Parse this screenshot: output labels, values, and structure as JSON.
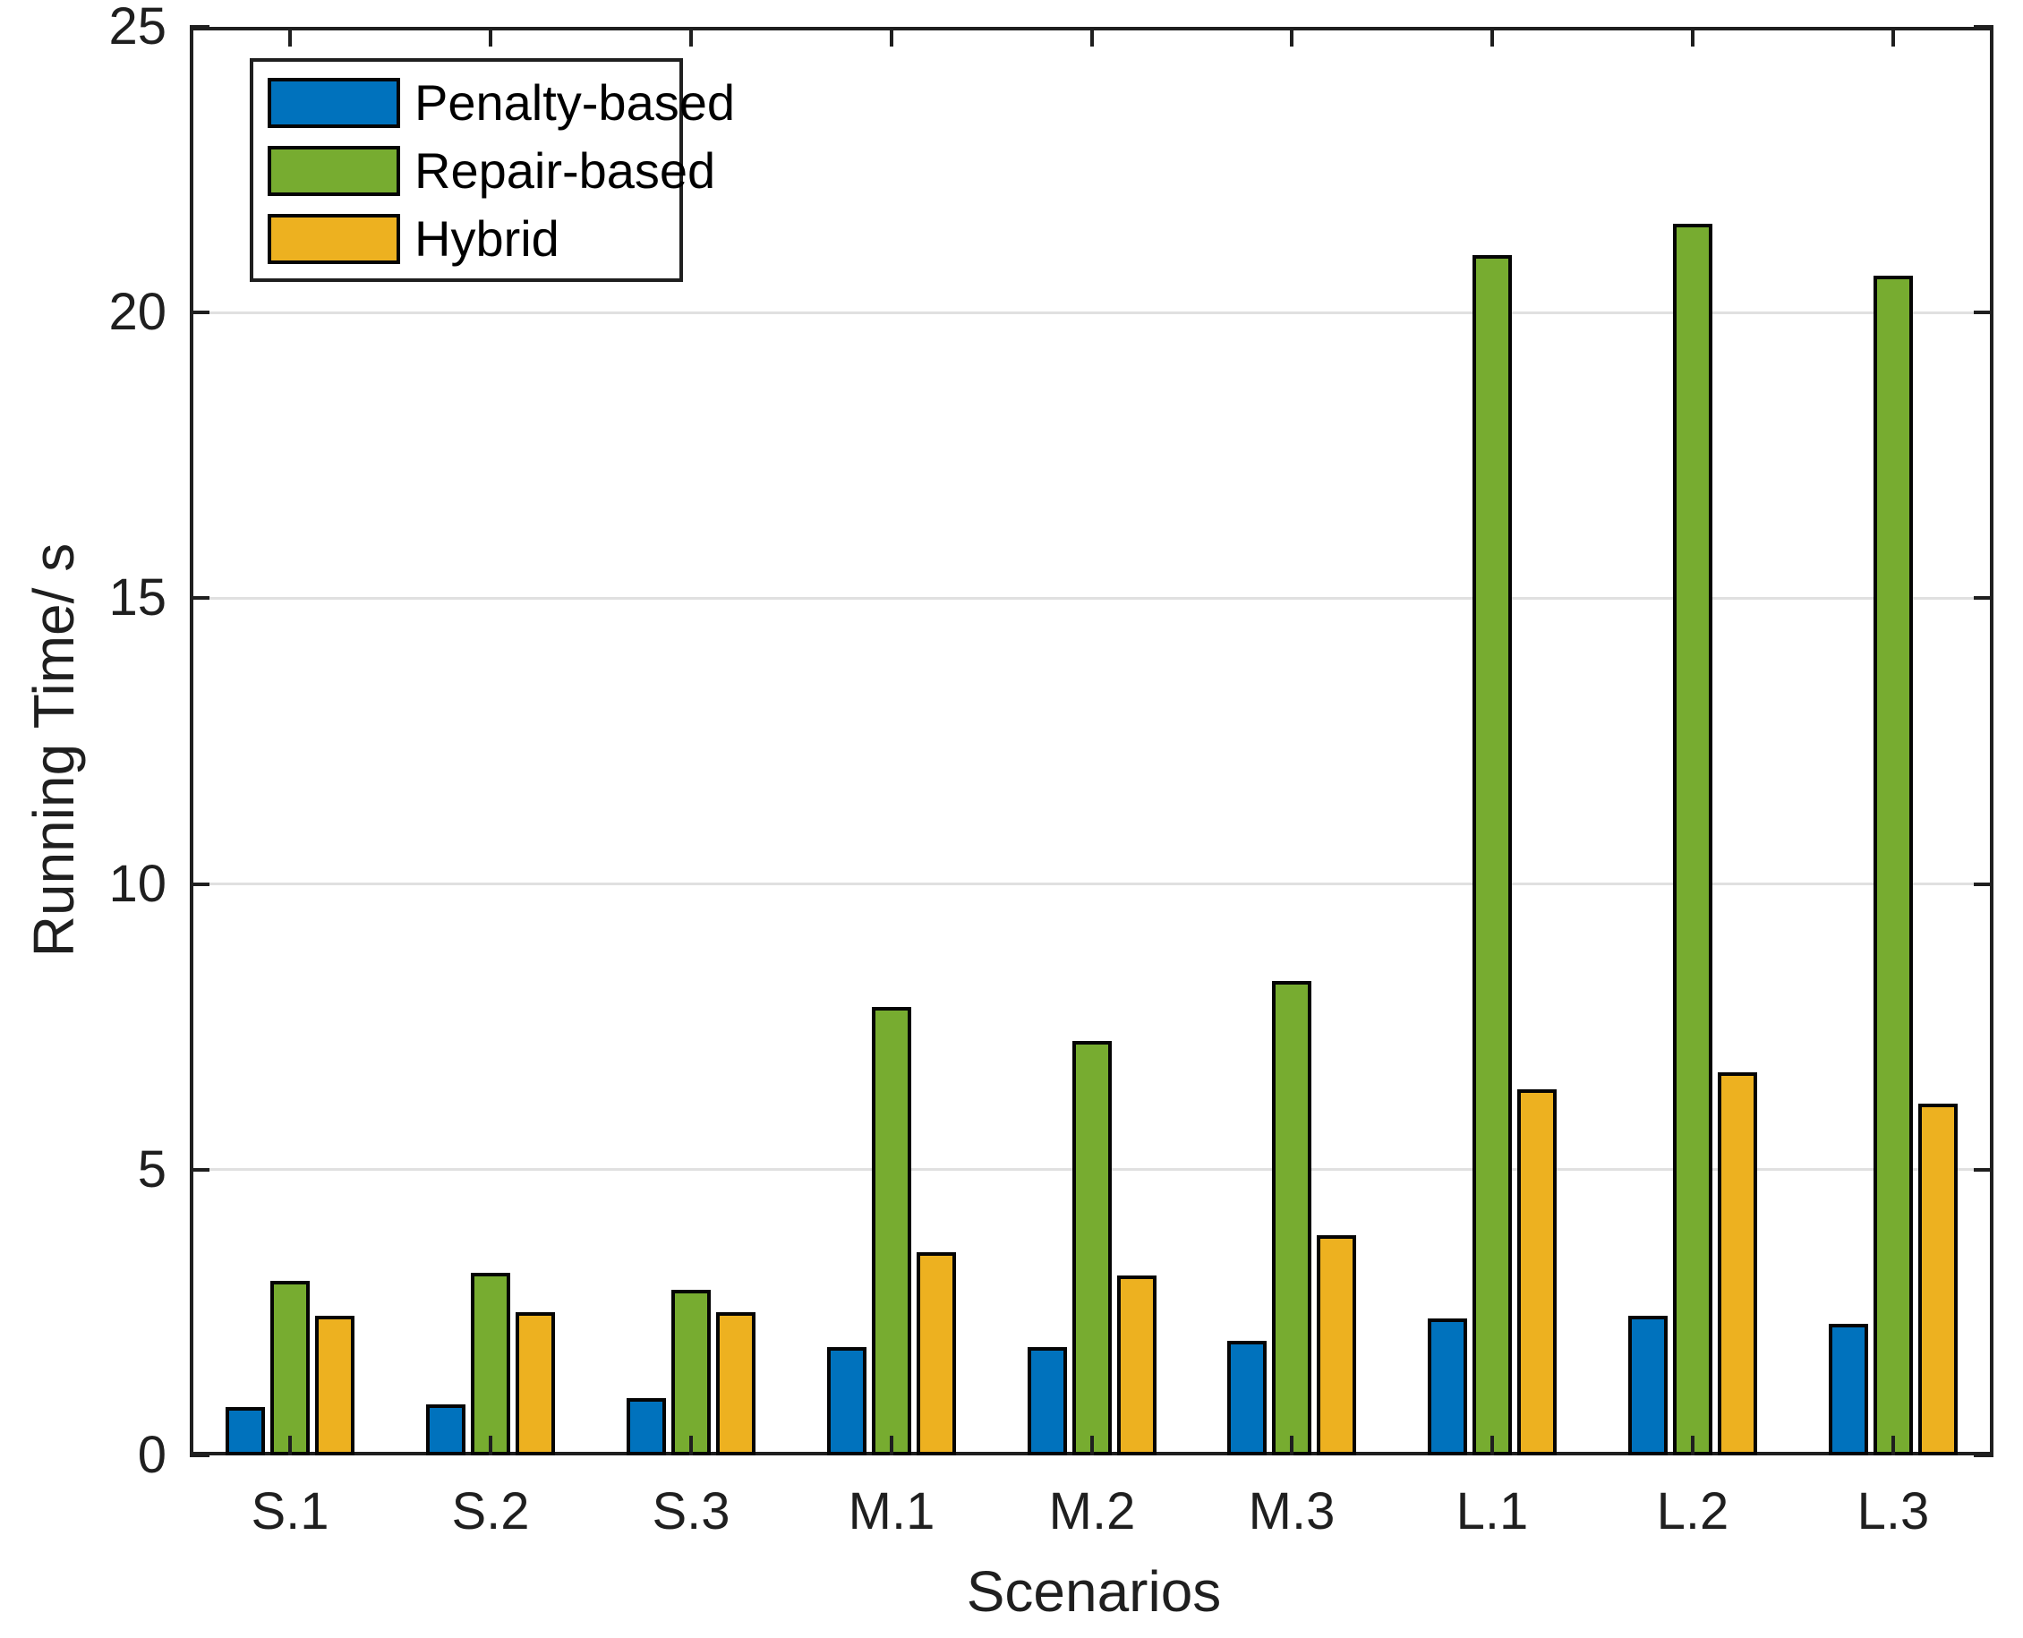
{
  "figure": {
    "background": "#ffffff",
    "axis_color": "#1f1f1f",
    "grid_color": "#e0e0e0",
    "bar_edge_color": "#050505"
  },
  "chart_data": {
    "type": "bar",
    "title": "",
    "xlabel": "Scenarios",
    "ylabel": "Running Time/ s",
    "categories": [
      "S.1",
      "S.2",
      "S.3",
      "M.1",
      "M.2",
      "M.3",
      "L.1",
      "L.2",
      "L.3"
    ],
    "series": [
      {
        "name": "Penalty-based",
        "color": "#0072BD",
        "values": [
          0.85,
          0.9,
          1.0,
          1.9,
          1.9,
          2.0,
          2.4,
          2.45,
          2.3
        ]
      },
      {
        "name": "Repair-based",
        "color": "#77AC30",
        "values": [
          3.05,
          3.2,
          2.9,
          7.85,
          7.25,
          8.3,
          21.0,
          21.55,
          20.65
        ]
      },
      {
        "name": "Hybrid",
        "color": "#EDB120",
        "values": [
          2.45,
          2.5,
          2.5,
          3.55,
          3.15,
          3.85,
          6.4,
          6.7,
          6.15
        ]
      }
    ],
    "ylim": [
      0,
      25
    ],
    "yticks": [
      0,
      5,
      10,
      15,
      20,
      25
    ],
    "grid": "horizontal-at-5-10-15-20",
    "legend_position": "top-left-inside",
    "legend_entries": [
      "Penalty-based",
      "Repair-based",
      "Hybrid"
    ]
  }
}
